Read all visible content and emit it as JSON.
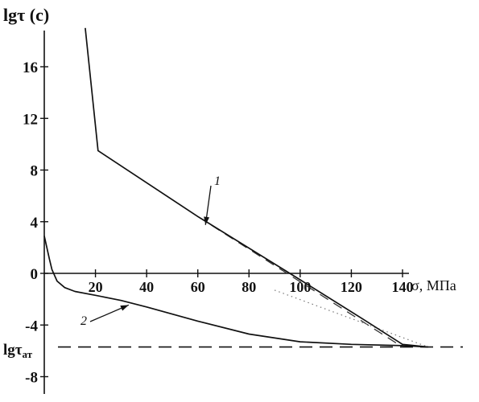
{
  "chart_data": {
    "type": "line",
    "title": "",
    "ylabel": "lgτ (c)",
    "xlabel": "σ, МПа",
    "xlim": [
      0,
      150
    ],
    "ylim": [
      -9,
      19
    ],
    "x_ticks": [
      20,
      40,
      60,
      80,
      100,
      120,
      140
    ],
    "y_ticks": [
      -8,
      -4,
      0,
      4,
      8,
      12,
      16
    ],
    "y_ticks_missing_label": [],
    "asymptote": {
      "label_main": "lgτ",
      "label_sub": "ат",
      "y": -5.7
    },
    "series": [
      {
        "name": "1",
        "x": [
          16,
          21,
          60,
          100,
          125,
          140,
          150
        ],
        "y": [
          19,
          9.5,
          4.4,
          -0.5,
          -3.6,
          -5.5,
          -5.7
        ]
      },
      {
        "name": "2",
        "x": [
          0,
          1,
          2,
          3,
          5,
          8,
          12,
          20,
          30,
          40,
          60,
          80,
          100,
          120,
          140,
          150
        ],
        "y": [
          2.9,
          2.0,
          1.1,
          0.3,
          -0.6,
          -1.1,
          -1.4,
          -1.7,
          -2.1,
          -2.6,
          -3.7,
          -4.7,
          -5.3,
          -5.5,
          -5.6,
          -5.7
        ]
      }
    ],
    "extrapolations": [
      {
        "series": "1",
        "style": "dashed",
        "x": [
          60,
          140
        ],
        "y": [
          4.4,
          -5.7
        ]
      },
      {
        "series": "1",
        "style": "dotted",
        "x": [
          90,
          150
        ],
        "y": [
          -1.3,
          -5.7
        ]
      }
    ],
    "legend": "none",
    "grid": false
  }
}
